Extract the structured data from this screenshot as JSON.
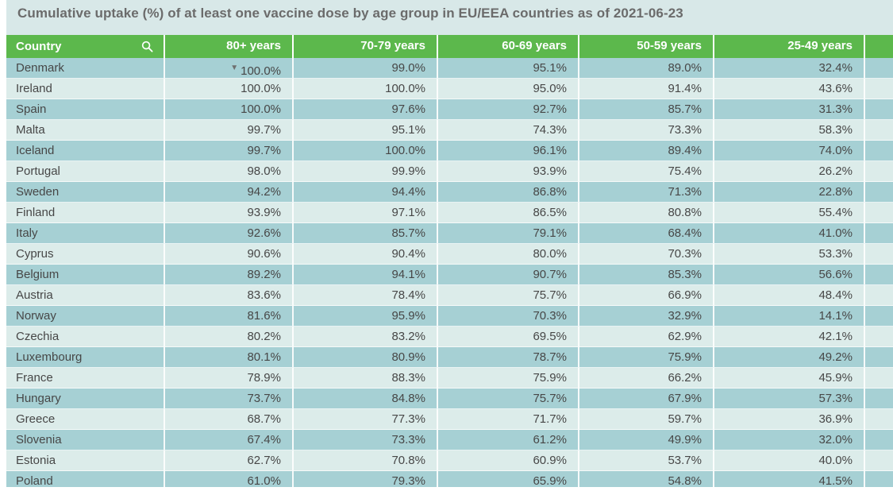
{
  "title": "Cumulative uptake (%) of at least one vaccine dose by age group in EU/EEA countries as of 2021-06-23",
  "table": {
    "columns": [
      "Country",
      "80+ years",
      "70-79 years",
      "60-69 years",
      "50-59 years",
      "25-49 years"
    ],
    "sort_indicator": "▼",
    "sorted_column": "80+ years",
    "sort_direction": "descending",
    "search_icon": "magnifier",
    "rows": [
      {
        "country": "Denmark",
        "values": [
          "100.0%",
          "99.0%",
          "95.1%",
          "89.0%",
          "32.4%"
        ]
      },
      {
        "country": "Ireland",
        "values": [
          "100.0%",
          "100.0%",
          "95.0%",
          "91.4%",
          "43.6%"
        ]
      },
      {
        "country": "Spain",
        "values": [
          "100.0%",
          "97.6%",
          "92.7%",
          "85.7%",
          "31.3%"
        ]
      },
      {
        "country": "Malta",
        "values": [
          "99.7%",
          "95.1%",
          "74.3%",
          "73.3%",
          "58.3%"
        ]
      },
      {
        "country": "Iceland",
        "values": [
          "99.7%",
          "100.0%",
          "96.1%",
          "89.4%",
          "74.0%"
        ]
      },
      {
        "country": "Portugal",
        "values": [
          "98.0%",
          "99.9%",
          "93.9%",
          "75.4%",
          "26.2%"
        ]
      },
      {
        "country": "Sweden",
        "values": [
          "94.2%",
          "94.4%",
          "86.8%",
          "71.3%",
          "22.8%"
        ]
      },
      {
        "country": "Finland",
        "values": [
          "93.9%",
          "97.1%",
          "86.5%",
          "80.8%",
          "55.4%"
        ]
      },
      {
        "country": "Italy",
        "values": [
          "92.6%",
          "85.7%",
          "79.1%",
          "68.4%",
          "41.0%"
        ]
      },
      {
        "country": "Cyprus",
        "values": [
          "90.6%",
          "90.4%",
          "80.0%",
          "70.3%",
          "53.3%"
        ]
      },
      {
        "country": "Belgium",
        "values": [
          "89.2%",
          "94.1%",
          "90.7%",
          "85.3%",
          "56.6%"
        ]
      },
      {
        "country": "Austria",
        "values": [
          "83.6%",
          "78.4%",
          "75.7%",
          "66.9%",
          "48.4%"
        ]
      },
      {
        "country": "Norway",
        "values": [
          "81.6%",
          "95.9%",
          "70.3%",
          "32.9%",
          "14.1%"
        ]
      },
      {
        "country": "Czechia",
        "values": [
          "80.2%",
          "83.2%",
          "69.5%",
          "62.9%",
          "42.1%"
        ]
      },
      {
        "country": "Luxembourg",
        "values": [
          "80.1%",
          "80.9%",
          "78.7%",
          "75.9%",
          "49.2%"
        ]
      },
      {
        "country": "France",
        "values": [
          "78.9%",
          "88.3%",
          "75.9%",
          "66.2%",
          "45.9%"
        ]
      },
      {
        "country": "Hungary",
        "values": [
          "73.7%",
          "84.8%",
          "75.7%",
          "67.9%",
          "57.3%"
        ]
      },
      {
        "country": "Greece",
        "values": [
          "68.7%",
          "77.3%",
          "71.7%",
          "59.7%",
          "36.9%"
        ]
      },
      {
        "country": "Slovenia",
        "values": [
          "67.4%",
          "73.3%",
          "61.2%",
          "49.9%",
          "32.0%"
        ]
      },
      {
        "country": "Estonia",
        "values": [
          "62.7%",
          "70.8%",
          "60.9%",
          "53.7%",
          "40.0%"
        ]
      },
      {
        "country": "Poland",
        "values": [
          "61.0%",
          "79.3%",
          "65.9%",
          "54.8%",
          "41.5%"
        ]
      }
    ]
  },
  "colors": {
    "header_green": "#5cb84c",
    "row_dark_teal": "#a6d0d4",
    "row_light_teal": "#dcecea",
    "title_band": "#d8e8e8",
    "title_text": "#6b6b6b",
    "cell_text": "#474747",
    "header_text": "#ffffff"
  },
  "chart_data": {
    "type": "table",
    "title": "Cumulative uptake (%) of at least one vaccine dose by age group in EU/EEA countries as of 2021-06-23",
    "columns": [
      "Country",
      "80+ years",
      "70-79 years",
      "60-69 years",
      "50-59 years",
      "25-49 years"
    ],
    "unit": "%",
    "sorted_by": "80+ years descending",
    "rows": [
      [
        "Denmark",
        100.0,
        99.0,
        95.1,
        89.0,
        32.4
      ],
      [
        "Ireland",
        100.0,
        100.0,
        95.0,
        91.4,
        43.6
      ],
      [
        "Spain",
        100.0,
        97.6,
        92.7,
        85.7,
        31.3
      ],
      [
        "Malta",
        99.7,
        95.1,
        74.3,
        73.3,
        58.3
      ],
      [
        "Iceland",
        99.7,
        100.0,
        96.1,
        89.4,
        74.0
      ],
      [
        "Portugal",
        98.0,
        99.9,
        93.9,
        75.4,
        26.2
      ],
      [
        "Sweden",
        94.2,
        94.4,
        86.8,
        71.3,
        22.8
      ],
      [
        "Finland",
        93.9,
        97.1,
        86.5,
        80.8,
        55.4
      ],
      [
        "Italy",
        92.6,
        85.7,
        79.1,
        68.4,
        41.0
      ],
      [
        "Cyprus",
        90.6,
        90.4,
        80.0,
        70.3,
        53.3
      ],
      [
        "Belgium",
        89.2,
        94.1,
        90.7,
        85.3,
        56.6
      ],
      [
        "Austria",
        83.6,
        78.4,
        75.7,
        66.9,
        48.4
      ],
      [
        "Norway",
        81.6,
        95.9,
        70.3,
        32.9,
        14.1
      ],
      [
        "Czechia",
        80.2,
        83.2,
        69.5,
        62.9,
        42.1
      ],
      [
        "Luxembourg",
        80.1,
        80.9,
        78.7,
        75.9,
        49.2
      ],
      [
        "France",
        78.9,
        88.3,
        75.9,
        66.2,
        45.9
      ],
      [
        "Hungary",
        73.7,
        84.8,
        75.7,
        67.9,
        57.3
      ],
      [
        "Greece",
        68.7,
        77.3,
        71.7,
        59.7,
        36.9
      ],
      [
        "Slovenia",
        67.4,
        73.3,
        61.2,
        49.9,
        32.0
      ],
      [
        "Estonia",
        62.7,
        70.8,
        60.9,
        53.7,
        40.0
      ],
      [
        "Poland",
        61.0,
        79.3,
        65.9,
        54.8,
        41.5
      ]
    ]
  }
}
